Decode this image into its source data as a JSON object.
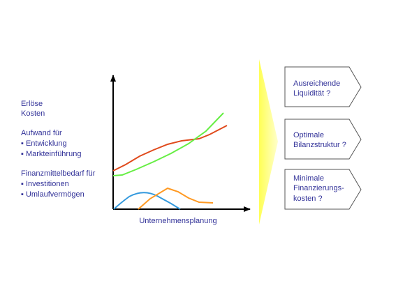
{
  "labels": [
    "Erlöse",
    "Kosten",
    "Aufwand für",
    "▪ Entwicklung",
    "▪ Markteinführung",
    "Finanzmittelbedarf für",
    "▪ Investitionen",
    "▪ Umlaufvermögen"
  ],
  "x_axis_label": "Unternehmensplanung",
  "questions": [
    {
      "lines": [
        "Ausreichende",
        "Liquidität ?"
      ]
    },
    {
      "lines": [
        "Optimale",
        "Bilanzstruktur ?"
      ]
    },
    {
      "lines": [
        "Minimale",
        "Finanzierungs-",
        "kosten ?"
      ]
    }
  ]
}
